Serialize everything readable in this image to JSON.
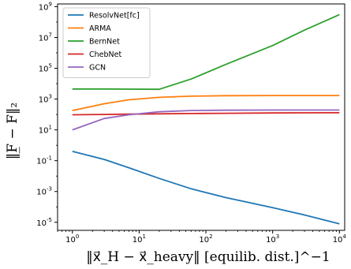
{
  "chart_data": {
    "type": "line",
    "title": "",
    "xlabel": "‖x⃗_H − x⃗_heavy‖ [equilib. dist.]^−1",
    "ylabel": "‖F̲ − F‖₂",
    "xscale": "log",
    "yscale": "log",
    "xlim": [
      0.6,
      12000
    ],
    "ylim": [
      3e-06,
      1500000000
    ],
    "grid": false,
    "legend": "top-left",
    "x_ticks": [
      {
        "value": 1,
        "base": "10",
        "exp": "0"
      },
      {
        "value": 10,
        "base": "10",
        "exp": "1"
      },
      {
        "value": 100,
        "base": "10",
        "exp": "2"
      },
      {
        "value": 1000,
        "base": "10",
        "exp": "3"
      },
      {
        "value": 10000,
        "base": "10",
        "exp": "4"
      }
    ],
    "y_ticks": [
      {
        "value": 1e-05,
        "base": "10",
        "exp": "-5"
      },
      {
        "value": 0.001,
        "base": "10",
        "exp": "-3"
      },
      {
        "value": 0.1,
        "base": "10",
        "exp": "-1"
      },
      {
        "value": 10,
        "base": "10",
        "exp": "1"
      },
      {
        "value": 1000,
        "base": "10",
        "exp": "3"
      },
      {
        "value": 100000,
        "base": "10",
        "exp": "5"
      },
      {
        "value": 10000000,
        "base": "10",
        "exp": "7"
      },
      {
        "value": 1000000000,
        "base": "10",
        "exp": "9"
      }
    ],
    "x": [
      1,
      3,
      7,
      20,
      60,
      200,
      1000,
      3000,
      10000
    ],
    "series": [
      {
        "name": "ResolvNet[fc]",
        "color": "#1f77b4",
        "values": [
          0.4,
          0.12,
          0.035,
          0.007,
          0.0015,
          0.0004,
          9e-05,
          3e-05,
          8e-06
        ]
      },
      {
        "name": "ARMA",
        "color": "#ff7f0e",
        "values": [
          180,
          500,
          900,
          1300,
          1550,
          1650,
          1700,
          1700,
          1700
        ]
      },
      {
        "name": "BernNet",
        "color": "#2ca02c",
        "values": [
          4500,
          4500,
          4400,
          4300,
          20000,
          180000,
          3000000,
          30000000,
          300000000
        ]
      },
      {
        "name": "ChebNet",
        "color": "#d62728",
        "values": [
          95,
          100,
          105,
          110,
          115,
          120,
          125,
          128,
          130
        ]
      },
      {
        "name": "GCN",
        "color": "#9467bd",
        "values": [
          10,
          55,
          95,
          150,
          180,
          190,
          195,
          195,
          195
        ]
      }
    ]
  }
}
